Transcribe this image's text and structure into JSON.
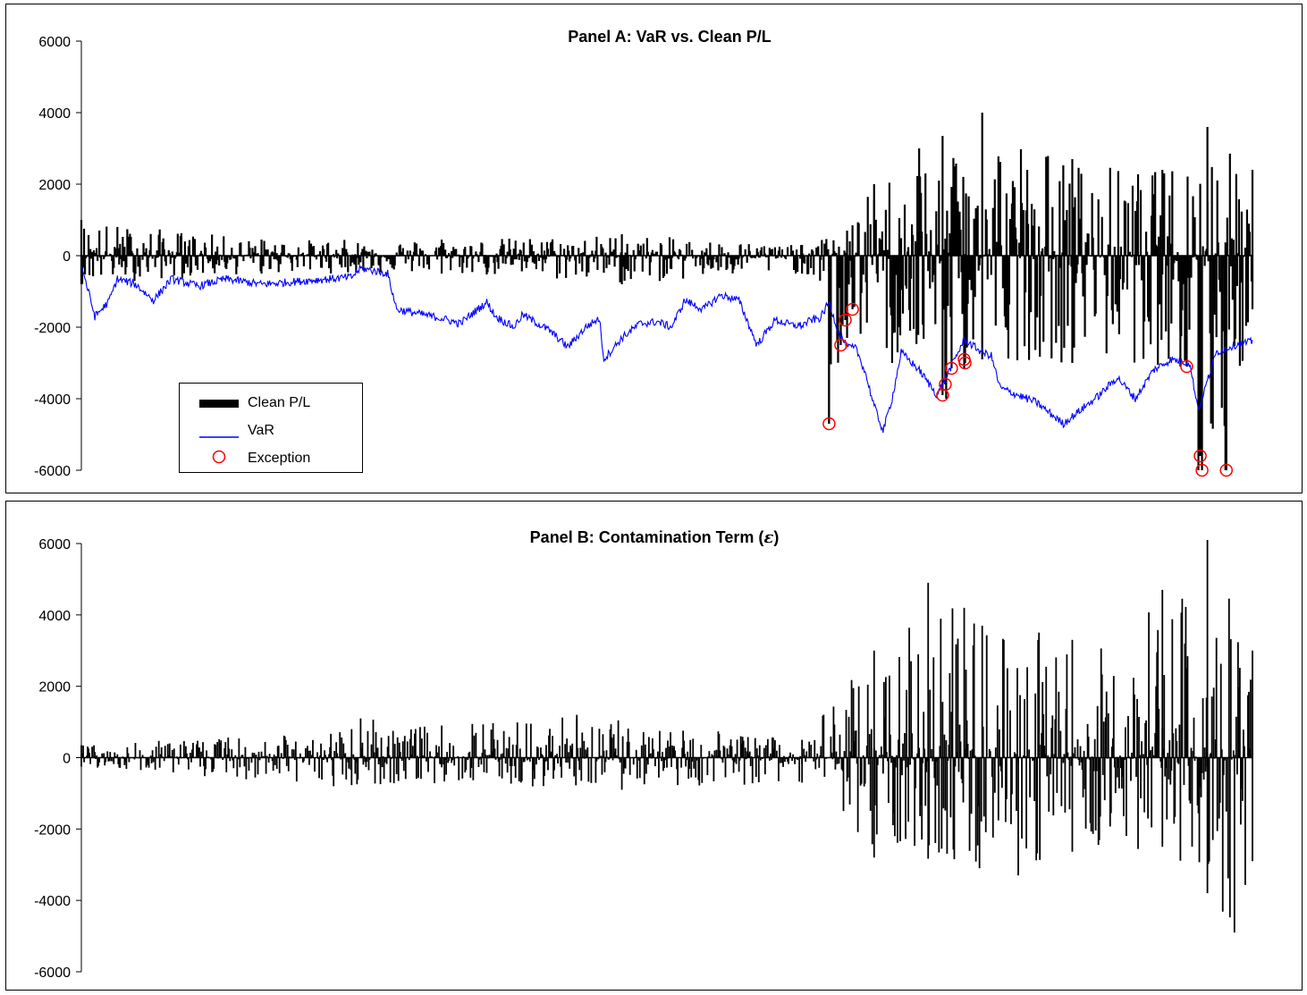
{
  "panels": [
    {
      "title": "Panel A: VaR vs. Clean P/L",
      "yticks": [
        "6000",
        "4000",
        "2000",
        "0",
        "-2000",
        "-4000",
        "-6000"
      ],
      "legend": [
        {
          "label": "Clean P/L",
          "color": "#000000",
          "symbol": "thick-bar"
        },
        {
          "label": "VaR",
          "color": "#0000ff",
          "symbol": "line"
        },
        {
          "label": "Exception",
          "color": "#ff0000",
          "symbol": "circle"
        }
      ]
    },
    {
      "title_prefix": "Panel B: Contamination Term (",
      "title_symbol": "ε",
      "title_suffix": ")",
      "yticks": [
        "6000",
        "4000",
        "2000",
        "0",
        "-2000",
        "-4000",
        "-6000"
      ]
    }
  ],
  "chart_data": [
    {
      "type": "bar",
      "title": "Panel A: VaR vs. Clean P/L",
      "ylim": [
        -6000,
        6000
      ],
      "x": {
        "n": 1300
      },
      "series": [
        {
          "name": "Clean P/L",
          "color": "#000000",
          "envelope": [
            [
              0,
              1000
            ],
            [
              200,
              450
            ],
            [
              400,
              450
            ],
            [
              600,
              600
            ],
            [
              800,
              300
            ],
            [
              850,
              700
            ],
            [
              880,
              2000
            ],
            [
              930,
              3000
            ],
            [
              1000,
              4000
            ],
            [
              1100,
              2700
            ],
            [
              1200,
              2400
            ],
            [
              1250,
              3600
            ],
            [
              1300,
              2400
            ]
          ],
          "neg_envelope": [
            [
              0,
              -800
            ],
            [
              200,
              -500
            ],
            [
              400,
              -500
            ],
            [
              600,
              -800
            ],
            [
              800,
              -500
            ],
            [
              820,
              -700
            ],
            [
              830,
              -4700
            ],
            [
              850,
              -2300
            ],
            [
              900,
              -3000
            ],
            [
              960,
              -4000
            ],
            [
              1000,
              -2900
            ],
            [
              1100,
              -3000
            ],
            [
              1220,
              -3100
            ],
            [
              1240,
              -6000
            ],
            [
              1270,
              -6000
            ],
            [
              1300,
              -1500
            ]
          ]
        },
        {
          "name": "VaR",
          "color": "#0000ff",
          "path": [
            [
              0,
              -250
            ],
            [
              15,
              -1700
            ],
            [
              30,
              -1300
            ],
            [
              40,
              -650
            ],
            [
              60,
              -800
            ],
            [
              80,
              -1250
            ],
            [
              100,
              -650
            ],
            [
              130,
              -850
            ],
            [
              160,
              -650
            ],
            [
              200,
              -800
            ],
            [
              250,
              -700
            ],
            [
              300,
              -600
            ],
            [
              310,
              -350
            ],
            [
              340,
              -500
            ],
            [
              350,
              -1500
            ],
            [
              400,
              -1750
            ],
            [
              420,
              -1900
            ],
            [
              450,
              -1300
            ],
            [
              460,
              -1700
            ],
            [
              480,
              -2000
            ],
            [
              490,
              -1650
            ],
            [
              520,
              -2100
            ],
            [
              540,
              -2550
            ],
            [
              560,
              -2000
            ],
            [
              575,
              -1750
            ],
            [
              580,
              -2900
            ],
            [
              600,
              -2300
            ],
            [
              620,
              -1900
            ],
            [
              640,
              -1850
            ],
            [
              655,
              -2000
            ],
            [
              670,
              -1250
            ],
            [
              690,
              -1500
            ],
            [
              710,
              -1100
            ],
            [
              730,
              -1250
            ],
            [
              750,
              -2500
            ],
            [
              770,
              -1800
            ],
            [
              790,
              -1950
            ],
            [
              800,
              -1950
            ],
            [
              810,
              -1800
            ],
            [
              820,
              -1750
            ],
            [
              830,
              -1300
            ],
            [
              840,
              -2100
            ],
            [
              850,
              -2550
            ],
            [
              860,
              -2600
            ],
            [
              870,
              -3250
            ],
            [
              880,
              -4200
            ],
            [
              890,
              -4900
            ],
            [
              900,
              -4000
            ],
            [
              910,
              -2700
            ],
            [
              930,
              -3200
            ],
            [
              950,
              -3900
            ],
            [
              980,
              -2350
            ],
            [
              1000,
              -2700
            ],
            [
              1010,
              -2800
            ],
            [
              1020,
              -3700
            ],
            [
              1060,
              -4100
            ],
            [
              1090,
              -4700
            ],
            [
              1110,
              -4300
            ],
            [
              1130,
              -3900
            ],
            [
              1150,
              -3400
            ],
            [
              1170,
              -4000
            ],
            [
              1190,
              -3200
            ],
            [
              1210,
              -2900
            ],
            [
              1230,
              -3000
            ],
            [
              1240,
              -4300
            ],
            [
              1250,
              -3500
            ],
            [
              1260,
              -2700
            ],
            [
              1280,
              -2500
            ],
            [
              1300,
              -2400
            ]
          ]
        },
        {
          "name": "Exception",
          "color": "#ff0000",
          "points": [
            [
              830,
              -4700
            ],
            [
              843,
              -2500
            ],
            [
              848,
              -1800
            ],
            [
              856,
              -1500
            ],
            [
              956,
              -3900
            ],
            [
              959,
              -3600
            ],
            [
              966,
              -3150
            ],
            [
              980,
              -2900
            ],
            [
              981,
              -3000
            ],
            [
              1227,
              -3100
            ],
            [
              1242,
              -5600
            ],
            [
              1244,
              -6000
            ],
            [
              1271,
              -6000
            ]
          ]
        }
      ]
    },
    {
      "type": "bar",
      "title": "Panel B: Contamination Term (ε)",
      "ylim": [
        -6000,
        6000
      ],
      "x": {
        "n": 1300
      },
      "series": [
        {
          "name": "Contamination Term (ε)",
          "color": "#000000",
          "envelope": [
            [
              0,
              350
            ],
            [
              300,
              800
            ],
            [
              310,
              1100
            ],
            [
              400,
              900
            ],
            [
              550,
              1200
            ],
            [
              800,
              500
            ],
            [
              880,
              3000
            ],
            [
              940,
              4900
            ],
            [
              980,
              4200
            ],
            [
              1100,
              3300
            ],
            [
              1200,
              4700
            ],
            [
              1250,
              6100
            ],
            [
              1300,
              3000
            ]
          ],
          "neg_envelope": [
            [
              0,
              -250
            ],
            [
              280,
              -800
            ],
            [
              600,
              -900
            ],
            [
              800,
              -700
            ],
            [
              880,
              -2800
            ],
            [
              1040,
              -3300
            ],
            [
              1200,
              -2500
            ],
            [
              1250,
              -3800
            ],
            [
              1280,
              -4900
            ],
            [
              1300,
              -2900
            ]
          ]
        }
      ]
    }
  ]
}
